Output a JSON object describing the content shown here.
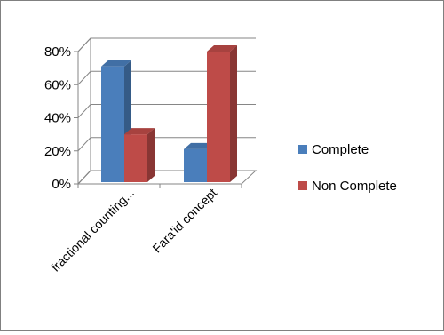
{
  "chart_data": {
    "type": "bar",
    "categories": [
      "fractional counting...",
      "Fara'id concept"
    ],
    "series": [
      {
        "name": "Complete",
        "values": [
          71,
          21
        ],
        "color": "#4a7ebb"
      },
      {
        "name": "Non Complete",
        "values": [
          30,
          80
        ],
        "color": "#be4b48"
      }
    ],
    "y_ticks": [
      "0%",
      "20%",
      "40%",
      "60%",
      "80%"
    ],
    "y_tick_values": [
      0,
      20,
      40,
      60,
      80
    ],
    "ylim": [
      0,
      80
    ],
    "grid": true,
    "legend_position": "right",
    "title": "",
    "xlabel": "",
    "ylabel": ""
  }
}
